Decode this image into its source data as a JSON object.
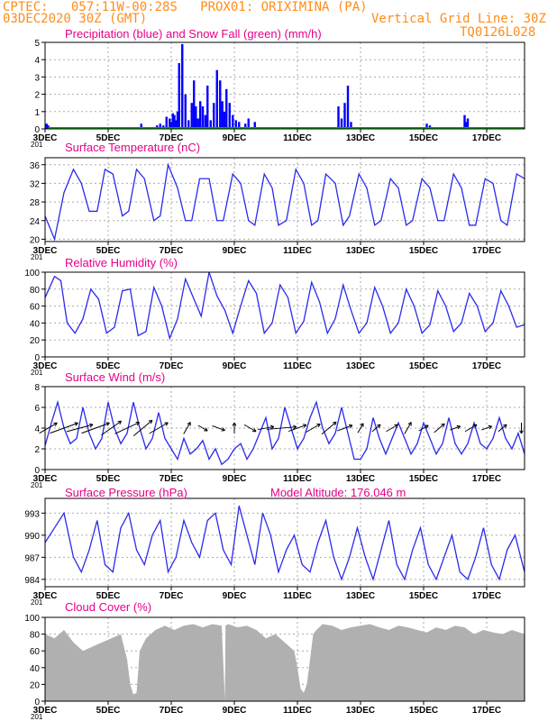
{
  "header": {
    "line1": "CPTEC:   057:11W-00:28S   PROX01: ORIXIMINA (PA)",
    "date_label": "03DEC2020 30Z (GMT)",
    "vgrid_label": "Vertical Grid Line: 30Z",
    "code_label": "TQ0126L028"
  },
  "colors": {
    "header": "#ff8c1a",
    "title": "#e6008a",
    "precip": "#0000ff",
    "snow": "#00aa00",
    "line": "#2a2aee",
    "cloud": "#b0b0b0"
  },
  "x_axis": {
    "tick_labels": [
      "3DEC",
      "5DEC",
      "7DEC",
      "9DEC",
      "11DEC",
      "13DEC",
      "15DEC",
      "17DEC"
    ],
    "tick_days": [
      3,
      5,
      7,
      9,
      11,
      13,
      15,
      17
    ],
    "start_day": 3,
    "end_day": 18.2,
    "overlap_fragment": "201"
  },
  "chart_data": [
    {
      "id": "precip",
      "type": "bar",
      "title": "Precipitation (blue) and Snow Fall (green) (mm/h)",
      "ylim": [
        0,
        5
      ],
      "yticks": [
        0,
        1,
        2,
        3,
        4,
        5
      ],
      "grid": true,
      "series": [
        {
          "name": "Precipitation",
          "x": [
            3.05,
            3.1,
            6.05,
            6.55,
            6.65,
            6.75,
            6.85,
            6.95,
            7.0,
            7.05,
            7.1,
            7.15,
            7.2,
            7.25,
            7.35,
            7.45,
            7.55,
            7.65,
            7.72,
            7.78,
            7.85,
            7.92,
            8.0,
            8.08,
            8.15,
            8.25,
            8.35,
            8.45,
            8.55,
            8.62,
            8.68,
            8.75,
            8.85,
            8.95,
            9.05,
            9.15,
            9.35,
            9.45,
            9.65,
            12.3,
            12.4,
            12.5,
            12.6,
            12.7,
            15.1,
            15.2,
            16.3,
            16.35,
            16.4
          ],
          "values": [
            0.3,
            0.2,
            0.3,
            0.2,
            0.3,
            0.2,
            0.7,
            0.6,
            0.4,
            0.9,
            0.8,
            0.5,
            1.0,
            3.8,
            4.9,
            2.0,
            0.5,
            1.5,
            2.8,
            1.3,
            0.6,
            1.6,
            1.3,
            0.8,
            2.5,
            0.5,
            1.5,
            3.4,
            2.8,
            1.6,
            1.0,
            2.3,
            1.5,
            0.8,
            0.5,
            0.4,
            0.3,
            0.6,
            0.4,
            1.3,
            0.6,
            1.5,
            2.5,
            0.4,
            0.3,
            0.2,
            0.8,
            0.4,
            0.6
          ]
        },
        {
          "name": "Snow Fall",
          "x": [],
          "values": []
        }
      ]
    },
    {
      "id": "temp",
      "type": "line",
      "title": "Surface Temperature (nC)",
      "ylim": [
        19.5,
        37.5
      ],
      "yticks": [
        20,
        24,
        28,
        32,
        36
      ],
      "grid": true,
      "series": [
        {
          "name": "Temperature",
          "x": [
            3.0,
            3.3,
            3.6,
            3.9,
            4.15,
            4.4,
            4.65,
            4.9,
            5.15,
            5.45,
            5.65,
            5.9,
            6.15,
            6.45,
            6.65,
            6.9,
            7.2,
            7.45,
            7.65,
            7.9,
            8.2,
            8.45,
            8.65,
            8.95,
            9.2,
            9.45,
            9.65,
            9.95,
            10.2,
            10.4,
            10.65,
            10.95,
            11.2,
            11.45,
            11.65,
            11.9,
            12.2,
            12.45,
            12.65,
            12.95,
            13.2,
            13.45,
            13.65,
            13.95,
            14.2,
            14.45,
            14.65,
            14.95,
            15.2,
            15.45,
            15.65,
            15.95,
            16.2,
            16.45,
            16.65,
            16.95,
            17.2,
            17.45,
            17.65,
            17.95,
            18.2
          ],
          "values": [
            25,
            20,
            30,
            35,
            32,
            26,
            26,
            35,
            34,
            25,
            26,
            35,
            33,
            24,
            25,
            36,
            31,
            24,
            24,
            33,
            33,
            24,
            24,
            34,
            32,
            24,
            23,
            34,
            31,
            23,
            24,
            35,
            32,
            23,
            24,
            34,
            32,
            23,
            25,
            34,
            31,
            23,
            24,
            33,
            31,
            23,
            24,
            33,
            31,
            24,
            24,
            34,
            31,
            23,
            23,
            33,
            32,
            24,
            23,
            34,
            33
          ]
        }
      ]
    },
    {
      "id": "rh",
      "type": "line",
      "title": "Relative Humidity (%)",
      "ylim": [
        0,
        100
      ],
      "yticks": [
        0,
        20,
        40,
        60,
        80,
        100
      ],
      "grid": true,
      "series": [
        {
          "name": "Relative Humidity",
          "x": [
            3.0,
            3.3,
            3.5,
            3.7,
            3.95,
            4.2,
            4.45,
            4.7,
            4.95,
            5.2,
            5.45,
            5.7,
            5.95,
            6.2,
            6.45,
            6.7,
            6.95,
            7.2,
            7.45,
            7.7,
            7.95,
            8.2,
            8.45,
            8.7,
            8.95,
            9.2,
            9.45,
            9.7,
            9.95,
            10.2,
            10.45,
            10.7,
            10.95,
            11.2,
            11.45,
            11.7,
            11.95,
            12.2,
            12.45,
            12.7,
            12.95,
            13.2,
            13.45,
            13.7,
            13.95,
            14.2,
            14.45,
            14.7,
            14.95,
            15.2,
            15.45,
            15.7,
            15.95,
            16.2,
            16.45,
            16.7,
            16.95,
            17.2,
            17.45,
            17.7,
            17.95,
            18.2
          ],
          "values": [
            70,
            95,
            90,
            40,
            28,
            45,
            80,
            68,
            28,
            35,
            78,
            80,
            25,
            30,
            82,
            60,
            22,
            45,
            92,
            70,
            48,
            100,
            72,
            55,
            28,
            60,
            90,
            75,
            28,
            40,
            85,
            70,
            28,
            42,
            88,
            65,
            28,
            45,
            85,
            55,
            28,
            40,
            82,
            60,
            28,
            40,
            80,
            60,
            28,
            38,
            78,
            60,
            30,
            40,
            75,
            60,
            30,
            40,
            78,
            60,
            35,
            38
          ]
        }
      ]
    },
    {
      "id": "wind",
      "type": "line",
      "title": "Surface Wind (m/s)",
      "ylim": [
        0,
        8
      ],
      "yticks": [
        0,
        2,
        4,
        6,
        8
      ],
      "grid": true,
      "series": [
        {
          "name": "Wind speed",
          "x": [
            3.0,
            3.2,
            3.4,
            3.6,
            3.8,
            4.0,
            4.2,
            4.4,
            4.6,
            4.8,
            5.0,
            5.2,
            5.4,
            5.6,
            5.8,
            6.0,
            6.2,
            6.4,
            6.6,
            6.8,
            7.0,
            7.2,
            7.4,
            7.6,
            7.8,
            8.0,
            8.2,
            8.4,
            8.6,
            8.8,
            9.0,
            9.2,
            9.4,
            9.6,
            9.8,
            10.0,
            10.2,
            10.4,
            10.6,
            10.8,
            11.0,
            11.2,
            11.4,
            11.6,
            11.8,
            12.0,
            12.2,
            12.4,
            12.6,
            12.8,
            13.0,
            13.2,
            13.4,
            13.6,
            13.8,
            14.0,
            14.2,
            14.4,
            14.6,
            14.8,
            15.0,
            15.2,
            15.4,
            15.6,
            15.8,
            16.0,
            16.2,
            16.4,
            16.6,
            16.8,
            17.0,
            17.2,
            17.4,
            17.6,
            17.8,
            18.0,
            18.2
          ],
          "values": [
            2.3,
            4.5,
            6.5,
            4.0,
            2.5,
            3.0,
            6.0,
            3.5,
            2.0,
            3.0,
            6.5,
            4.0,
            2.5,
            3.5,
            6.5,
            4.0,
            2.0,
            3.0,
            5.5,
            3.0,
            2.0,
            1.0,
            3.0,
            1.5,
            2.0,
            2.8,
            1.0,
            2.0,
            0.5,
            1.0,
            2.0,
            2.5,
            1.0,
            2.0,
            3.5,
            5.0,
            2.0,
            3.0,
            6.0,
            4.0,
            2.0,
            3.0,
            5.0,
            6.5,
            4.0,
            2.5,
            3.5,
            6.0,
            3.5,
            1.0,
            1.0,
            2.0,
            5.0,
            3.0,
            1.5,
            3.0,
            4.5,
            3.0,
            1.5,
            2.5,
            4.5,
            3.0,
            1.5,
            2.5,
            5.0,
            2.5,
            1.5,
            2.5,
            4.5,
            2.5,
            2.0,
            3.0,
            5.0,
            3.0,
            2.0,
            3.5,
            1.5
          ]
        }
      ],
      "wind_arrows": [
        {
          "day": 3.1,
          "speed": 2.8,
          "dir": -30
        },
        {
          "day": 3.6,
          "speed": 4.5,
          "dir": -20
        },
        {
          "day": 4.1,
          "speed": 4.0,
          "dir": -15
        },
        {
          "day": 4.6,
          "speed": 4.5,
          "dir": -20
        },
        {
          "day": 5.1,
          "speed": 3.5,
          "dir": -35
        },
        {
          "day": 5.6,
          "speed": 4.0,
          "dir": -25
        },
        {
          "day": 6.1,
          "speed": 3.5,
          "dir": -40
        },
        {
          "day": 6.6,
          "speed": 3.0,
          "dir": -30
        },
        {
          "day": 7.5,
          "speed": 1.5,
          "dir": -60
        },
        {
          "day": 8.0,
          "speed": 1.0,
          "dir": 30
        },
        {
          "day": 8.5,
          "speed": 1.5,
          "dir": 20
        },
        {
          "day": 9.0,
          "speed": 1.0,
          "dir": -90
        },
        {
          "day": 9.5,
          "speed": 1.5,
          "dir": 30
        },
        {
          "day": 10.0,
          "speed": 2.0,
          "dir": -10
        },
        {
          "day": 10.5,
          "speed": 4.5,
          "dir": -5
        },
        {
          "day": 11.0,
          "speed": 2.5,
          "dir": -20
        },
        {
          "day": 11.5,
          "speed": 2.0,
          "dir": -30
        },
        {
          "day": 12.0,
          "speed": 2.5,
          "dir": -40
        },
        {
          "day": 12.5,
          "speed": 2.0,
          "dir": -20
        },
        {
          "day": 13.0,
          "speed": 1.0,
          "dir": -60
        },
        {
          "day": 13.5,
          "speed": 1.0,
          "dir": -40
        },
        {
          "day": 14.0,
          "speed": 1.5,
          "dir": -30
        },
        {
          "day": 14.5,
          "speed": 1.5,
          "dir": -60
        },
        {
          "day": 15.0,
          "speed": 1.0,
          "dir": -30
        },
        {
          "day": 15.5,
          "speed": 1.5,
          "dir": -40
        },
        {
          "day": 16.0,
          "speed": 1.0,
          "dir": -20
        },
        {
          "day": 16.5,
          "speed": 1.5,
          "dir": -30
        },
        {
          "day": 17.0,
          "speed": 1.0,
          "dir": -20
        },
        {
          "day": 17.5,
          "speed": 1.0,
          "dir": -40
        },
        {
          "day": 18.1,
          "speed": 1.0,
          "dir": 90
        }
      ]
    },
    {
      "id": "pressure",
      "type": "line",
      "title": "Surface Pressure (hPa)",
      "annotation": "Model Altitude: 176.046 m",
      "ylim": [
        983,
        995
      ],
      "yticks": [
        984,
        987,
        990,
        993
      ],
      "grid": true,
      "series": [
        {
          "name": "Pressure",
          "x": [
            3.0,
            3.3,
            3.6,
            3.9,
            4.15,
            4.4,
            4.65,
            4.9,
            5.15,
            5.4,
            5.65,
            5.9,
            6.15,
            6.4,
            6.65,
            6.9,
            7.15,
            7.4,
            7.65,
            7.9,
            8.15,
            8.4,
            8.65,
            8.9,
            9.15,
            9.4,
            9.65,
            9.9,
            10.15,
            10.4,
            10.65,
            10.9,
            11.15,
            11.4,
            11.65,
            11.9,
            12.15,
            12.4,
            12.65,
            12.9,
            13.15,
            13.4,
            13.65,
            13.9,
            14.15,
            14.4,
            14.65,
            14.9,
            15.15,
            15.4,
            15.65,
            15.9,
            16.15,
            16.4,
            16.65,
            16.9,
            17.15,
            17.4,
            17.65,
            17.9,
            18.2
          ],
          "values": [
            989,
            991,
            993,
            987,
            985,
            988,
            992,
            986,
            985,
            991,
            993,
            988,
            986,
            990,
            992,
            985,
            987,
            992,
            989,
            987,
            992,
            993,
            988,
            986,
            994,
            990,
            986,
            993,
            990,
            985,
            988,
            990,
            986,
            985,
            989,
            992,
            987,
            984,
            987,
            991,
            987,
            984,
            988,
            992,
            986,
            984,
            988,
            991,
            986,
            984,
            987,
            990,
            985,
            984,
            987,
            991,
            986,
            984,
            988,
            990,
            985
          ]
        }
      ]
    },
    {
      "id": "cloud",
      "type": "area",
      "title": "Cloud Cover (%)",
      "ylim": [
        0,
        100
      ],
      "yticks": [
        0,
        20,
        40,
        60,
        80,
        100
      ],
      "grid": true,
      "series": [
        {
          "name": "Cloud Cover",
          "x": [
            3.0,
            3.3,
            3.6,
            3.9,
            4.2,
            4.5,
            4.8,
            5.1,
            5.4,
            5.6,
            5.7,
            5.8,
            5.9,
            6.0,
            6.2,
            6.5,
            6.8,
            7.1,
            7.4,
            7.7,
            8.0,
            8.3,
            8.6,
            8.7,
            8.72,
            8.8,
            9.1,
            9.4,
            9.7,
            10.0,
            10.3,
            10.6,
            10.9,
            11.0,
            11.1,
            11.2,
            11.3,
            11.4,
            11.5,
            11.6,
            11.8,
            12.1,
            12.4,
            12.7,
            13.0,
            13.3,
            13.6,
            13.9,
            14.2,
            14.5,
            14.8,
            15.1,
            15.4,
            15.7,
            16.0,
            16.3,
            16.6,
            16.9,
            17.2,
            17.5,
            17.8,
            18.2
          ],
          "values": [
            80,
            75,
            85,
            70,
            60,
            65,
            70,
            75,
            80,
            50,
            20,
            8,
            10,
            60,
            75,
            85,
            90,
            85,
            90,
            92,
            88,
            92,
            90,
            2,
            90,
            92,
            88,
            90,
            85,
            75,
            80,
            70,
            60,
            40,
            15,
            10,
            20,
            50,
            80,
            85,
            92,
            90,
            85,
            88,
            90,
            92,
            88,
            85,
            90,
            88,
            85,
            82,
            88,
            85,
            90,
            88,
            80,
            85,
            82,
            80,
            85,
            80
          ]
        }
      ]
    }
  ]
}
